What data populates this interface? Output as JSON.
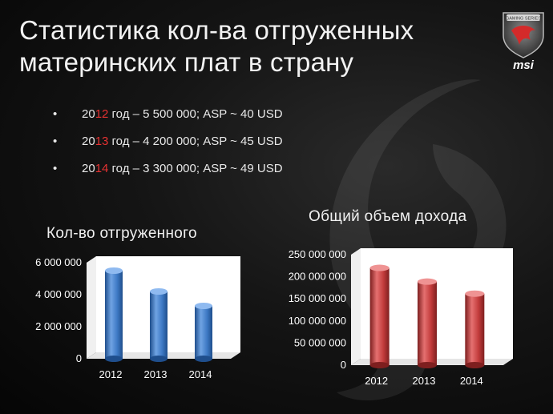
{
  "slide": {
    "title_line1": "Статистика кол-ва отгруженных",
    "title_line2": "материнских плат в страну",
    "logo_text": "msi",
    "logo_badge": "GAMING SERIES",
    "bullets": [
      {
        "y_prefix": "20",
        "y_suffix": "12",
        "text": " год – 5 500 000; ASP ~ 40 USD"
      },
      {
        "y_prefix": "20",
        "y_suffix": "13",
        "text": " год – 4 200 000; ASP ~ 45 USD"
      },
      {
        "y_prefix": "20",
        "y_suffix": "14",
        "text": " год – 3 300 000; ASP ~ 49 USD"
      }
    ],
    "bullet_glyph": "•"
  },
  "colors": {
    "accent_red": "#e53232",
    "bar_blue": "#3d79c4",
    "bar_red": "#c23b3b"
  },
  "chart_data": [
    {
      "type": "bar",
      "title": "Кол-во отгруженного",
      "categories": [
        "2012",
        "2013",
        "2014"
      ],
      "values": [
        5500000,
        4200000,
        3300000
      ],
      "ylim": [
        0,
        6000000
      ],
      "yticks": [
        0,
        2000000,
        4000000,
        6000000
      ],
      "ytick_labels": [
        "0",
        "2 000 000",
        "4 000 000",
        "6 000 000"
      ],
      "xlabel": "",
      "ylabel": "",
      "grid": false,
      "color": "blue"
    },
    {
      "type": "bar",
      "title": "Общий объем дохода",
      "categories": [
        "2012",
        "2013",
        "2014"
      ],
      "values": [
        220000000,
        189000000,
        161700000
      ],
      "ylim": [
        0,
        250000000
      ],
      "yticks": [
        0,
        50000000,
        100000000,
        150000000,
        200000000,
        250000000
      ],
      "ytick_labels": [
        "0",
        "50 000 000",
        "100 000 000",
        "150 000 000",
        "200 000 000",
        "250 000 000"
      ],
      "xlabel": "",
      "ylabel": "",
      "grid": false,
      "color": "red"
    }
  ]
}
